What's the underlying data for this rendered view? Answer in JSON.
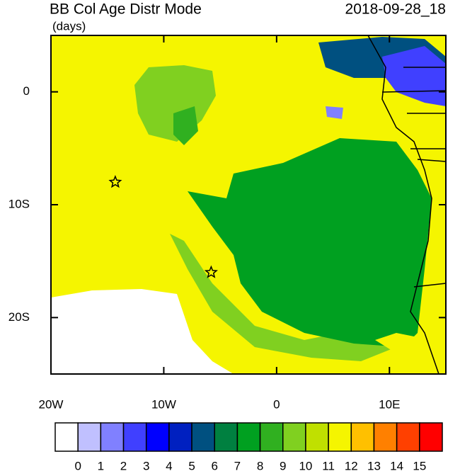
{
  "title": "BB Col Age Distr Mode",
  "units": "(days)",
  "date": "2018-09-28_18",
  "lonlim": [
    -20,
    15
  ],
  "latlim": [
    -25,
    5
  ],
  "lon_ticks": [
    {
      "value": -20,
      "label": "20W"
    },
    {
      "value": -10,
      "label": "10W"
    },
    0,
    {
      "value": 10,
      "label": "10E"
    }
  ],
  "lat_ticks": [
    0,
    {
      "value": -10,
      "label": "10S"
    },
    {
      "value": -20,
      "label": "20S"
    }
  ],
  "markers": [
    {
      "lon": -14.3,
      "lat": -8
    },
    {
      "lon": -5.8,
      "lat": -16
    }
  ],
  "colorbar": {
    "labels": [
      0,
      1,
      2,
      3,
      4,
      5,
      6,
      7,
      8,
      9,
      10,
      11,
      12,
      13,
      14,
      15
    ],
    "colors": [
      "#ffffff",
      "#c0c0ff",
      "#8080ff",
      "#4040ff",
      "#0000ff",
      "#0020c0",
      "#005080",
      "#008040",
      "#00a020",
      "#30b020",
      "#80d020",
      "#c0e000",
      "#f5f500",
      "#ffc000",
      "#ff8000",
      "#ff4000",
      "#ff0000"
    ]
  }
}
